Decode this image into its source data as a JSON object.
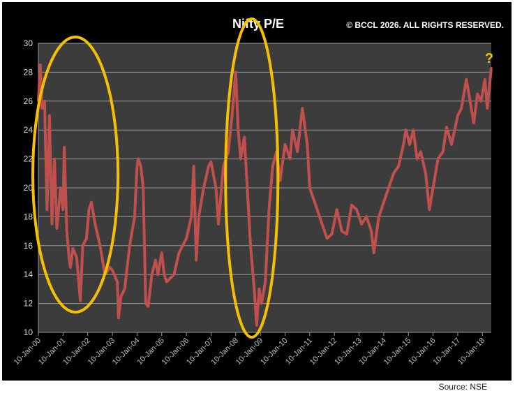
{
  "chart_data": {
    "type": "line",
    "title": "Nifty P/E",
    "xlabel": "",
    "ylabel": "",
    "ylim": [
      10,
      30
    ],
    "yticks": [
      10,
      12,
      14,
      16,
      18,
      20,
      22,
      24,
      26,
      28,
      30
    ],
    "xlim": [
      2000.0,
      2018.36
    ],
    "xtick_labels": [
      "10-Jan-00",
      "10-Jan-01",
      "10-Jan-02",
      "10-Jan-03",
      "10-Jan-04",
      "10-Jan-05",
      "10-Jan-06",
      "10-Jan-07",
      "10-Jan-08",
      "10-Jan-09",
      "10-Jan-10",
      "10-Jan-11",
      "10-Jan-12",
      "10-Jan-13",
      "10-Jan-14",
      "10-Jan-15",
      "10-Jan-16",
      "10-Jan-17",
      "10-Jan-18"
    ],
    "grid": true,
    "series": [
      {
        "name": "Nifty P/E",
        "color": "#c0504d",
        "points": [
          [
            2000.0,
            26
          ],
          [
            2000.08,
            28.5
          ],
          [
            2000.15,
            25.5
          ],
          [
            2000.25,
            26
          ],
          [
            2000.35,
            18.5
          ],
          [
            2000.45,
            25
          ],
          [
            2000.55,
            17.5
          ],
          [
            2000.65,
            22
          ],
          [
            2000.75,
            17.2
          ],
          [
            2000.9,
            20
          ],
          [
            2001.0,
            18.5
          ],
          [
            2001.05,
            22.8
          ],
          [
            2001.15,
            17
          ],
          [
            2001.25,
            15
          ],
          [
            2001.3,
            14.5
          ],
          [
            2001.4,
            15.8
          ],
          [
            2001.55,
            15.2
          ],
          [
            2001.7,
            12.2
          ],
          [
            2001.8,
            16
          ],
          [
            2001.95,
            16.5
          ],
          [
            2002.05,
            18.5
          ],
          [
            2002.15,
            19
          ],
          [
            2002.3,
            17.5
          ],
          [
            2002.5,
            16
          ],
          [
            2002.7,
            14
          ],
          [
            2002.9,
            14.5
          ],
          [
            2003.0,
            14.3
          ],
          [
            2003.2,
            13.5
          ],
          [
            2003.25,
            11
          ],
          [
            2003.35,
            12.5
          ],
          [
            2003.5,
            13
          ],
          [
            2003.7,
            16
          ],
          [
            2003.9,
            18
          ],
          [
            2004.0,
            21.5
          ],
          [
            2004.05,
            22
          ],
          [
            2004.15,
            21.5
          ],
          [
            2004.25,
            20
          ],
          [
            2004.35,
            12
          ],
          [
            2004.45,
            11.8
          ],
          [
            2004.6,
            14
          ],
          [
            2004.75,
            15
          ],
          [
            2004.85,
            14
          ],
          [
            2005.0,
            15.5
          ],
          [
            2005.1,
            14
          ],
          [
            2005.2,
            13.5
          ],
          [
            2005.5,
            14
          ],
          [
            2005.7,
            15.5
          ],
          [
            2006.0,
            16.5
          ],
          [
            2006.2,
            18
          ],
          [
            2006.3,
            21.5
          ],
          [
            2006.4,
            15
          ],
          [
            2006.5,
            18
          ],
          [
            2006.7,
            20
          ],
          [
            2006.9,
            21.5
          ],
          [
            2007.0,
            21.8
          ],
          [
            2007.2,
            20
          ],
          [
            2007.3,
            17.5
          ],
          [
            2007.5,
            21.5
          ],
          [
            2007.7,
            22.5
          ],
          [
            2007.85,
            25
          ],
          [
            2008.0,
            28
          ],
          [
            2008.1,
            24
          ],
          [
            2008.2,
            22
          ],
          [
            2008.35,
            23.5
          ],
          [
            2008.5,
            19
          ],
          [
            2008.6,
            16
          ],
          [
            2008.75,
            13
          ],
          [
            2008.85,
            10.5
          ],
          [
            2008.95,
            13
          ],
          [
            2009.05,
            12
          ],
          [
            2009.2,
            13.5
          ],
          [
            2009.35,
            18.5
          ],
          [
            2009.5,
            21.5
          ],
          [
            2009.65,
            22.5
          ],
          [
            2009.8,
            20.5
          ],
          [
            2010.0,
            23
          ],
          [
            2010.2,
            22
          ],
          [
            2010.3,
            24
          ],
          [
            2010.5,
            22.5
          ],
          [
            2010.7,
            25.5
          ],
          [
            2010.9,
            23
          ],
          [
            2011.0,
            20
          ],
          [
            2011.2,
            19
          ],
          [
            2011.4,
            18
          ],
          [
            2011.5,
            17.5
          ],
          [
            2011.7,
            16.5
          ],
          [
            2011.9,
            16.8
          ],
          [
            2012.1,
            18.5
          ],
          [
            2012.3,
            17
          ],
          [
            2012.5,
            16.8
          ],
          [
            2012.7,
            18.8
          ],
          [
            2012.9,
            18.5
          ],
          [
            2013.1,
            17.5
          ],
          [
            2013.3,
            18
          ],
          [
            2013.5,
            17
          ],
          [
            2013.6,
            15.5
          ],
          [
            2013.8,
            18
          ],
          [
            2014.0,
            19
          ],
          [
            2014.2,
            20
          ],
          [
            2014.4,
            21
          ],
          [
            2014.6,
            21.5
          ],
          [
            2014.8,
            23
          ],
          [
            2014.9,
            24
          ],
          [
            2015.05,
            23
          ],
          [
            2015.2,
            24
          ],
          [
            2015.35,
            22
          ],
          [
            2015.5,
            22.5
          ],
          [
            2015.7,
            21
          ],
          [
            2015.85,
            18.5
          ],
          [
            2016.0,
            20
          ],
          [
            2016.2,
            22
          ],
          [
            2016.4,
            22.5
          ],
          [
            2016.55,
            24.2
          ],
          [
            2016.75,
            23
          ],
          [
            2016.9,
            24.2
          ],
          [
            2017.0,
            25
          ],
          [
            2017.15,
            25.5
          ],
          [
            2017.35,
            27.5
          ],
          [
            2017.5,
            26
          ],
          [
            2017.65,
            24.5
          ],
          [
            2017.8,
            26.5
          ],
          [
            2017.95,
            26
          ],
          [
            2018.1,
            27.5
          ],
          [
            2018.2,
            25.5
          ],
          [
            2018.36,
            28.3
          ]
        ]
      }
    ],
    "annotations": {
      "question_mark": "?",
      "highlight_color": "#f5c000",
      "highlight_periods": [
        [
          2000.0,
          2003.0
        ],
        [
          2007.7,
          2009.6
        ]
      ]
    }
  },
  "watermark": "© BCCL 2026. ALL RIGHTS RESERVED.",
  "source": "Source: NSE"
}
